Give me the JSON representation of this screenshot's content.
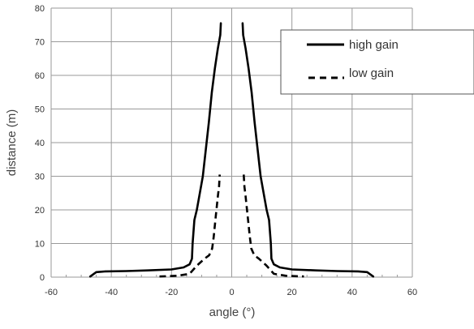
{
  "chart_data": {
    "type": "line",
    "title": "",
    "xlabel": "angle (°)",
    "ylabel": "distance (m)",
    "xlim": [
      -60,
      60
    ],
    "ylim": [
      0,
      80
    ],
    "xticks": [
      -60,
      -40,
      -20,
      0,
      20,
      40,
      60
    ],
    "yticks": [
      0,
      10,
      20,
      30,
      40,
      50,
      60,
      70,
      80
    ],
    "grid": true,
    "legend": {
      "placement": "top-right",
      "entries": [
        {
          "label": "high gain",
          "style": "solid"
        },
        {
          "label": "low gain",
          "style": "dashed"
        }
      ]
    },
    "series": [
      {
        "name": "high gain",
        "style": "solid",
        "color": "#000000",
        "segments": [
          [
            [
              -47,
              0.2
            ],
            [
              -45,
              1.5
            ],
            [
              -42,
              1.7
            ],
            [
              -35,
              1.8
            ],
            [
              -28,
              2.0
            ],
            [
              -20,
              2.3
            ],
            [
              -16,
              2.9
            ],
            [
              -14,
              3.8
            ],
            [
              -13.2,
              5.5
            ],
            [
              -13,
              10
            ],
            [
              -12.4,
              17
            ],
            [
              -11.6,
              20
            ],
            [
              -10.6,
              25
            ],
            [
              -9.6,
              30
            ],
            [
              -8.6,
              38
            ],
            [
              -7.6,
              46
            ],
            [
              -6.6,
              55
            ],
            [
              -5.6,
              62
            ],
            [
              -4.6,
              68
            ],
            [
              -3.8,
              72
            ],
            [
              -3.6,
              75.5
            ]
          ],
          [
            [
              3.6,
              75.5
            ],
            [
              3.8,
              72
            ],
            [
              4.6,
              68
            ],
            [
              5.6,
              62
            ],
            [
              6.6,
              55
            ],
            [
              7.6,
              46
            ],
            [
              8.6,
              38
            ],
            [
              9.6,
              30
            ],
            [
              10.6,
              25
            ],
            [
              11.6,
              20
            ],
            [
              12.4,
              17
            ],
            [
              13,
              10
            ],
            [
              13.2,
              5.5
            ],
            [
              14,
              3.8
            ],
            [
              16,
              2.9
            ],
            [
              20,
              2.3
            ],
            [
              28,
              2.0
            ],
            [
              35,
              1.8
            ],
            [
              42,
              1.7
            ],
            [
              45,
              1.5
            ],
            [
              47,
              0.2
            ]
          ]
        ]
      },
      {
        "name": "low gain",
        "style": "dashed",
        "color": "#000000",
        "segments": [
          [
            [
              -24,
              0.2
            ],
            [
              -18,
              0.4
            ],
            [
              -14,
              1.0
            ],
            [
              -11.5,
              3.5
            ],
            [
              -9,
              5.5
            ],
            [
              -7.5,
              6.5
            ],
            [
              -6.5,
              8.5
            ],
            [
              -6,
              12
            ],
            [
              -5.3,
              18
            ],
            [
              -4.6,
              24
            ],
            [
              -4.2,
              27
            ],
            [
              -4.0,
              30.5
            ]
          ],
          [
            [
              4.0,
              30.5
            ],
            [
              4.2,
              27
            ],
            [
              4.6,
              24
            ],
            [
              5.3,
              18
            ],
            [
              6,
              12
            ],
            [
              6.5,
              8.5
            ],
            [
              7.5,
              6.5
            ],
            [
              9,
              5.5
            ],
            [
              11.5,
              3.5
            ],
            [
              14,
              1.0
            ],
            [
              18,
              0.4
            ],
            [
              24,
              0.2
            ]
          ]
        ]
      }
    ]
  }
}
